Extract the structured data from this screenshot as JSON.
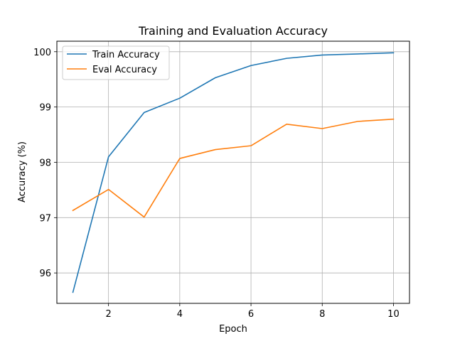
{
  "chart_data": {
    "type": "line",
    "title": "Training and Evaluation Accuracy",
    "xlabel": "Epoch",
    "ylabel": "Accuracy (%)",
    "x": [
      1,
      2,
      3,
      4,
      5,
      6,
      7,
      8,
      9,
      10
    ],
    "xlim": [
      0.55,
      10.45
    ],
    "ylim": [
      95.45,
      100.19
    ],
    "xticks": [
      2,
      4,
      6,
      8,
      10
    ],
    "yticks": [
      96,
      97,
      98,
      99,
      100
    ],
    "xtick_labels": [
      "2",
      "4",
      "6",
      "8",
      "10"
    ],
    "ytick_labels": [
      "96",
      "97",
      "98",
      "99",
      "100"
    ],
    "grid": true,
    "legend_position": "top-left",
    "series": [
      {
        "name": "Train Accuracy",
        "color": "#1f77b4",
        "values": [
          95.65,
          98.1,
          98.9,
          99.16,
          99.53,
          99.75,
          99.88,
          99.94,
          99.96,
          99.98
        ]
      },
      {
        "name": "Eval Accuracy",
        "color": "#ff7f0e",
        "values": [
          97.13,
          97.51,
          97.01,
          98.07,
          98.23,
          98.3,
          98.69,
          98.61,
          98.74,
          98.78
        ]
      }
    ]
  }
}
